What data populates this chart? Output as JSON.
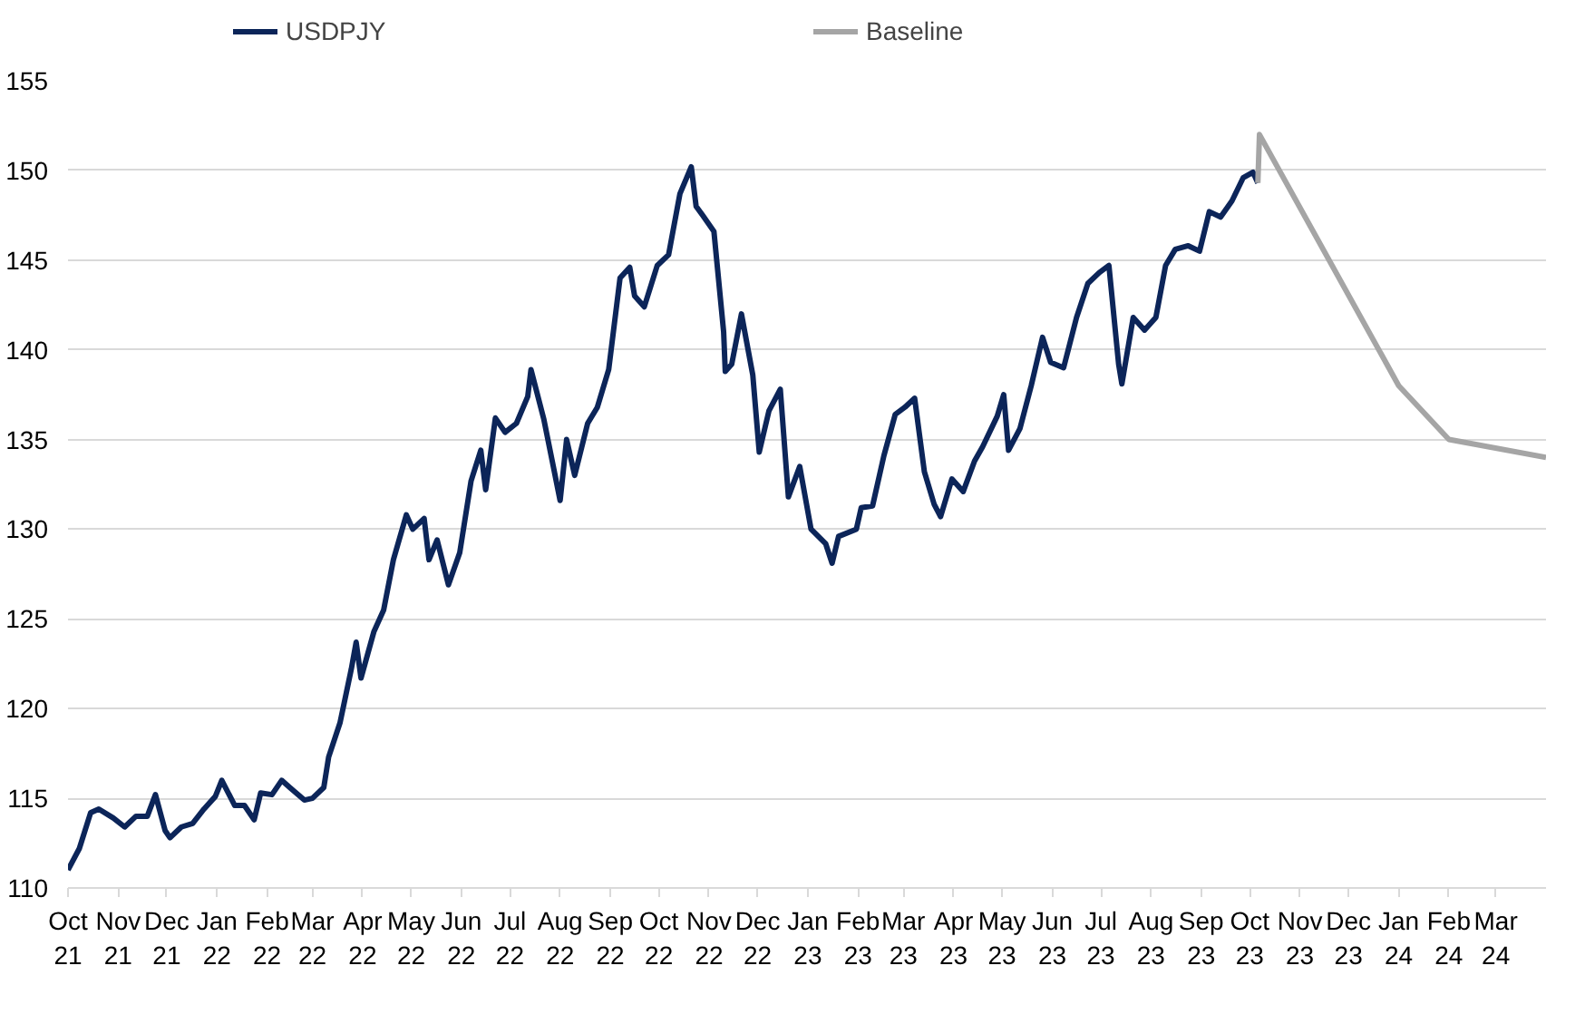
{
  "chart_data": {
    "type": "line",
    "xlim": [
      "2021-10-01",
      "2024-04-01"
    ],
    "ylim": [
      110,
      155
    ],
    "yticks": [
      110,
      115,
      120,
      125,
      130,
      135,
      140,
      145,
      150,
      155
    ],
    "xticks": [
      {
        "value": "2021-10-01",
        "label": "Oct 21"
      },
      {
        "value": "2021-11-01",
        "label": "Nov 21"
      },
      {
        "value": "2021-12-01",
        "label": "Dec 21"
      },
      {
        "value": "2022-01-01",
        "label": "Jan 22"
      },
      {
        "value": "2022-02-01",
        "label": "Feb 22"
      },
      {
        "value": "2022-03-01",
        "label": "Mar 22"
      },
      {
        "value": "2022-04-01",
        "label": "Apr 22"
      },
      {
        "value": "2022-05-01",
        "label": "May 22"
      },
      {
        "value": "2022-06-01",
        "label": "Jun 22"
      },
      {
        "value": "2022-07-01",
        "label": "Jul 22"
      },
      {
        "value": "2022-08-01",
        "label": "Aug 22"
      },
      {
        "value": "2022-09-01",
        "label": "Sep 22"
      },
      {
        "value": "2022-10-01",
        "label": "Oct 22"
      },
      {
        "value": "2022-11-01",
        "label": "Nov 22"
      },
      {
        "value": "2022-12-01",
        "label": "Dec 22"
      },
      {
        "value": "2023-01-01",
        "label": "Jan 23"
      },
      {
        "value": "2023-02-01",
        "label": "Feb 23"
      },
      {
        "value": "2023-03-01",
        "label": "Mar 23"
      },
      {
        "value": "2023-04-01",
        "label": "Apr 23"
      },
      {
        "value": "2023-05-01",
        "label": "May 23"
      },
      {
        "value": "2023-06-01",
        "label": "Jun 23"
      },
      {
        "value": "2023-07-01",
        "label": "Jul 23"
      },
      {
        "value": "2023-08-01",
        "label": "Aug 23"
      },
      {
        "value": "2023-09-01",
        "label": "Sep 23"
      },
      {
        "value": "2023-10-01",
        "label": "Oct 23"
      },
      {
        "value": "2023-11-01",
        "label": "Nov 23"
      },
      {
        "value": "2023-12-01",
        "label": "Dec 23"
      },
      {
        "value": "2024-01-01",
        "label": "Jan 24"
      },
      {
        "value": "2024-02-01",
        "label": "Feb 24"
      },
      {
        "value": "2024-03-01",
        "label": "Mar 24"
      }
    ],
    "grid": "y",
    "legend": "top",
    "marker": "none",
    "line_style": "solid",
    "series": [
      {
        "name": "USDPJY",
        "color": "#0c2559",
        "x": [
          "2021-10-01",
          "2021-10-08",
          "2021-10-15",
          "2021-10-20",
          "2021-10-29",
          "2021-11-05",
          "2021-11-12",
          "2021-11-19",
          "2021-11-24",
          "2021-11-30",
          "2021-12-03",
          "2021-12-10",
          "2021-12-17",
          "2021-12-24",
          "2021-12-31",
          "2022-01-04",
          "2022-01-12",
          "2022-01-18",
          "2022-01-24",
          "2022-01-28",
          "2022-02-04",
          "2022-02-10",
          "2022-02-15",
          "2022-02-24",
          "2022-03-01",
          "2022-03-08",
          "2022-03-11",
          "2022-03-18",
          "2022-03-25",
          "2022-03-28",
          "2022-03-31",
          "2022-04-08",
          "2022-04-14",
          "2022-04-20",
          "2022-04-28",
          "2022-05-02",
          "2022-05-09",
          "2022-05-12",
          "2022-05-17",
          "2022-05-24",
          "2022-05-31",
          "2022-06-07",
          "2022-06-13",
          "2022-06-16",
          "2022-06-22",
          "2022-06-28",
          "2022-07-05",
          "2022-07-12",
          "2022-07-14",
          "2022-07-22",
          "2022-08-01",
          "2022-08-05",
          "2022-08-10",
          "2022-08-18",
          "2022-08-24",
          "2022-08-31",
          "2022-09-07",
          "2022-09-13",
          "2022-09-16",
          "2022-09-22",
          "2022-09-30",
          "2022-10-07",
          "2022-10-14",
          "2022-10-21",
          "2022-10-24",
          "2022-10-28",
          "2022-11-04",
          "2022-11-10",
          "2022-11-11",
          "2022-11-15",
          "2022-11-21",
          "2022-11-28",
          "2022-12-02",
          "2022-12-08",
          "2022-12-15",
          "2022-12-20",
          "2022-12-27",
          "2023-01-03",
          "2023-01-12",
          "2023-01-16",
          "2023-01-20",
          "2023-01-31",
          "2023-02-03",
          "2023-02-10",
          "2023-02-17",
          "2023-02-24",
          "2023-03-02",
          "2023-03-08",
          "2023-03-14",
          "2023-03-20",
          "2023-03-24",
          "2023-03-31",
          "2023-04-07",
          "2023-04-14",
          "2023-04-19",
          "2023-04-28",
          "2023-05-02",
          "2023-05-05",
          "2023-05-12",
          "2023-05-19",
          "2023-05-26",
          "2023-05-31",
          "2023-06-08",
          "2023-06-16",
          "2023-06-23",
          "2023-06-30",
          "2023-07-06",
          "2023-07-12",
          "2023-07-14",
          "2023-07-21",
          "2023-07-28",
          "2023-08-04",
          "2023-08-10",
          "2023-08-16",
          "2023-08-24",
          "2023-08-31",
          "2023-09-06",
          "2023-09-13",
          "2023-09-20",
          "2023-09-27",
          "2023-10-03",
          "2023-10-06"
        ],
        "values": [
          111.0,
          112.2,
          114.2,
          114.4,
          113.9,
          113.4,
          114.0,
          114.0,
          115.2,
          113.2,
          112.8,
          113.4,
          113.6,
          114.4,
          115.1,
          116.0,
          114.6,
          114.6,
          113.8,
          115.3,
          115.2,
          116.0,
          115.6,
          114.9,
          115.0,
          115.6,
          117.3,
          119.2,
          122.2,
          123.7,
          121.7,
          124.3,
          125.5,
          128.3,
          130.8,
          130.0,
          130.6,
          128.3,
          129.4,
          126.9,
          128.7,
          132.7,
          134.4,
          132.2,
          136.2,
          135.4,
          135.9,
          137.4,
          138.9,
          136.1,
          131.6,
          135.0,
          133.0,
          135.9,
          136.8,
          138.9,
          144.0,
          144.6,
          143.0,
          142.4,
          144.7,
          145.3,
          148.7,
          150.2,
          148.0,
          147.5,
          146.6,
          141.0,
          138.8,
          139.2,
          142.0,
          138.6,
          134.3,
          136.6,
          137.8,
          131.8,
          133.5,
          130.0,
          129.2,
          128.1,
          129.6,
          130.0,
          131.2,
          131.3,
          134.1,
          136.4,
          136.8,
          137.3,
          133.2,
          131.4,
          130.7,
          132.8,
          132.1,
          133.8,
          134.6,
          136.3,
          137.5,
          134.4,
          135.6,
          138.0,
          140.7,
          139.3,
          139.0,
          141.8,
          143.7,
          144.3,
          144.7,
          139.2,
          138.1,
          141.8,
          141.1,
          141.8,
          144.7,
          145.6,
          145.8,
          145.5,
          147.7,
          147.4,
          148.3,
          149.6,
          149.9,
          149.3
        ]
      },
      {
        "name": "Baseline",
        "color": "#a5a5a5",
        "x": [
          "2023-10-06",
          "2023-10-07",
          "2024-01-01",
          "2024-02-01",
          "2024-04-01"
        ],
        "values": [
          149.3,
          152,
          138,
          135,
          134
        ]
      }
    ]
  }
}
